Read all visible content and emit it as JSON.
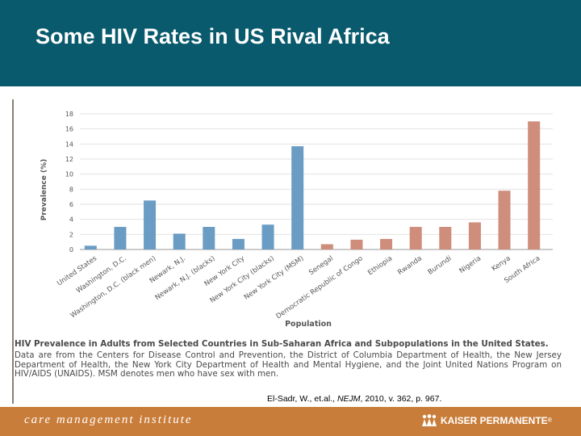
{
  "slide": {
    "title": "Some HIV Rates in US Rival Africa"
  },
  "chart_data": {
    "type": "bar",
    "ylabel": "Prevalence (%)",
    "xlabel": "Population",
    "ylim": [
      0,
      18
    ],
    "yticks": [
      0,
      2,
      4,
      6,
      8,
      10,
      12,
      14,
      16,
      18
    ],
    "grid": true,
    "categories": [
      "United States",
      "Washington, D.C.",
      "Washington, D.C. (black men)",
      "Newark, N.J.",
      "Newark, N.J. (blacks)",
      "New York City",
      "New York City (blacks)",
      "New York City (MSM)",
      "Senegal",
      "Democratic Republic of Congo",
      "Ethiopia",
      "Rwanda",
      "Burundi",
      "Nigeria",
      "Kenya",
      "South Africa"
    ],
    "values": [
      0.5,
      3.0,
      6.5,
      2.1,
      3.0,
      1.4,
      3.3,
      13.7,
      0.7,
      1.3,
      1.4,
      3.0,
      3.0,
      3.6,
      7.8,
      17.0
    ],
    "groups": [
      "us",
      "us",
      "us",
      "us",
      "us",
      "us",
      "us",
      "us",
      "africa",
      "africa",
      "africa",
      "africa",
      "africa",
      "africa",
      "africa",
      "africa"
    ],
    "colors": {
      "us": "#6a9cc4",
      "africa": "#cf8d7b"
    }
  },
  "caption": {
    "title": "HIV Prevalence in Adults from Selected Countries in Sub-Saharan Africa and Subpopulations in the United States.",
    "body": "Data are from the Centers for Disease Control and Prevention, the District of Columbia Department of Health, the New Jersey Department of Health, the New York City Department of Health and Mental Hygiene, and the Joint United Nations Program on HIV/AIDS (UNAIDS). MSM denotes men who have sex with men."
  },
  "citation": {
    "prefix": "El-Sadr, W., et.al., ",
    "journal": "NEJM",
    "suffix": ", 2010, v. 362, p. 967."
  },
  "footer": {
    "left_label": "care management institute",
    "logo_label": "KAISER PERMANENTE",
    "logo_mark": "®",
    "logo_icon": "kaiser-people-icon"
  }
}
